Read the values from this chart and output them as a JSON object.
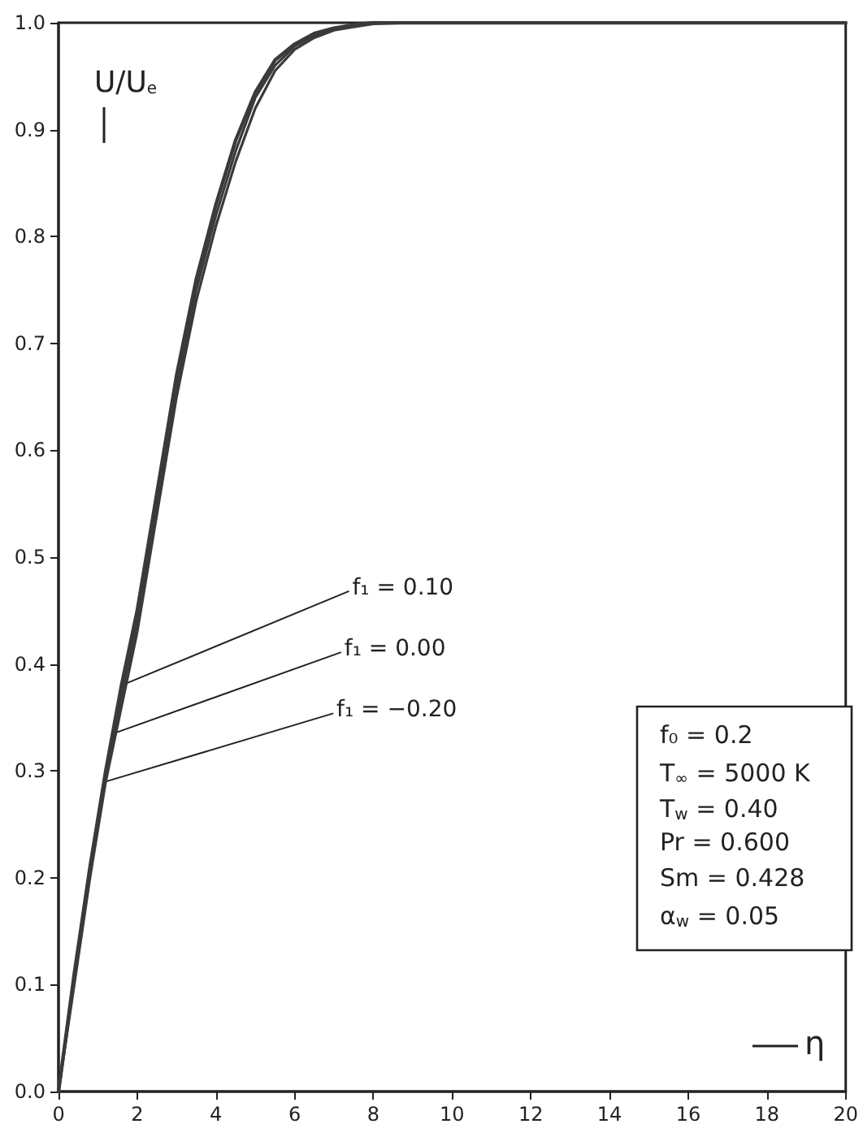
{
  "chart_data": {
    "type": "line",
    "xlabel": "η",
    "ylabel": "U/U$_{e}$",
    "xlim": [
      0,
      20
    ],
    "xticks": [
      0,
      2,
      4,
      6,
      8,
      10,
      12,
      14,
      16,
      18,
      20
    ],
    "ylim": [
      0,
      1
    ],
    "yticks": [
      {
        "value": 0,
        "label": "0.0"
      },
      0.1,
      0.2,
      0.3,
      0.4,
      0.5,
      0.6,
      0.7,
      0.8,
      0.9,
      {
        "value": 1,
        "label": "1.0"
      }
    ],
    "grid": false,
    "marker": "none",
    "line_style": "solid",
    "x": [
      0,
      0.4,
      0.8,
      1.2,
      1.6,
      2.0,
      2.5,
      3.0,
      3.5,
      4.0,
      4.5,
      5.0,
      5.5,
      6.0,
      6.5,
      7.0,
      7.5,
      8,
      9,
      10,
      12,
      14,
      16,
      18,
      20
    ],
    "series": [
      {
        "color": "#3a3a3a",
        "values": [
          0,
          0.11,
          0.21,
          0.3,
          0.38,
          0.45,
          0.56,
          0.67,
          0.76,
          0.83,
          0.89,
          0.935,
          0.965,
          0.98,
          0.99,
          0.995,
          0.998,
          1,
          1,
          1,
          1,
          1,
          1,
          1,
          1
        ]
      },
      {
        "color": "#3a3a3a",
        "values": [
          0,
          0.105,
          0.205,
          0.295,
          0.37,
          0.44,
          0.55,
          0.66,
          0.75,
          0.82,
          0.88,
          0.93,
          0.96,
          0.978,
          0.988,
          0.994,
          0.997,
          1,
          1,
          1,
          null,
          null,
          null,
          null,
          null
        ]
      },
      {
        "color": "#3a3a3a",
        "values": [
          0,
          0.1,
          0.2,
          0.29,
          0.36,
          0.43,
          0.54,
          0.65,
          0.74,
          0.81,
          0.87,
          0.92,
          0.955,
          0.975,
          0.986,
          0.993,
          0.996,
          0.999,
          1,
          null,
          null,
          null,
          null,
          null,
          null
        ]
      }
    ],
    "annotations": [
      {
        "text": "f₁ = 0.10",
        "x": 1.6,
        "y": 0.38
      },
      {
        "text": "f₁ = 0.00",
        "x": 1.4,
        "y": 0.335
      },
      {
        "text": "f₁ = −0.20",
        "x": 1.2,
        "y": 0.29
      },
      "f₀ = 0.2",
      "T$_{∞}$ = 5000 K",
      "T$_{w}$ = 0.40",
      "Pr = 0.600",
      "Sm = 0.428",
      "α$_{w}$ = 0.05"
    ]
  }
}
